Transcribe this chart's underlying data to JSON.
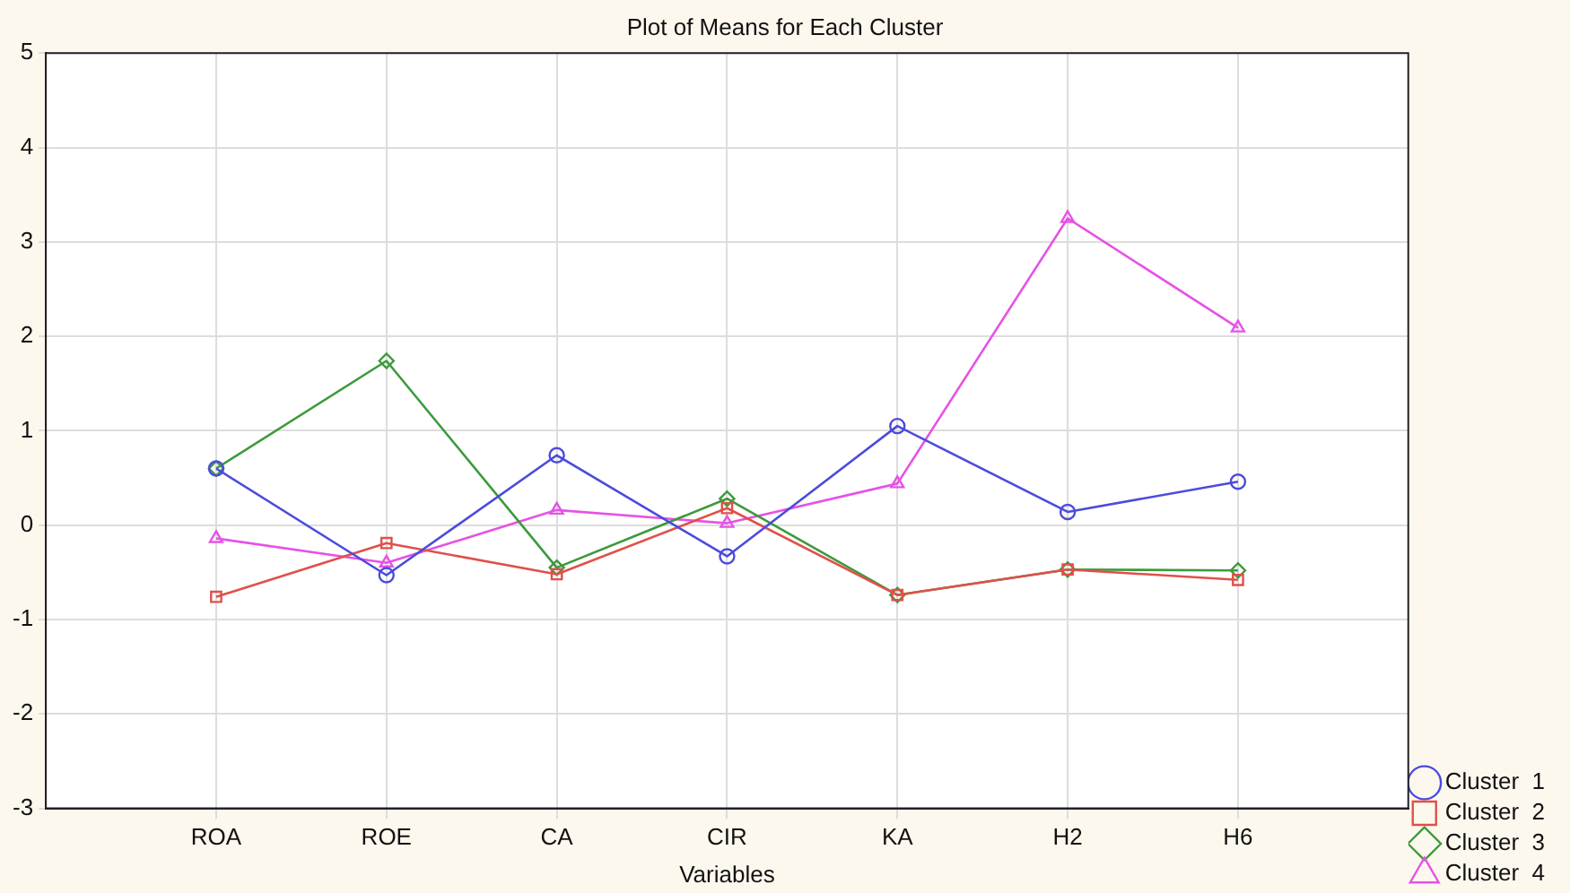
{
  "chart_data": {
    "type": "line",
    "title": "Plot of Means for Each Cluster",
    "xlabel": "Variables",
    "categories": [
      "ROA",
      "ROE",
      "CA",
      "CIR",
      "KA",
      "H2",
      "H6"
    ],
    "ylim": [
      -3,
      5
    ],
    "yticks": [
      -3,
      -2,
      -1,
      0,
      1,
      2,
      3,
      4,
      5
    ],
    "grid": true,
    "legend": "bottom right",
    "line_style": "solid",
    "series": [
      {
        "name": "Cluster  1",
        "color": "#4b4bdc",
        "marker": "circle",
        "values": [
          0.6,
          -0.53,
          0.74,
          -0.33,
          1.05,
          0.14,
          0.46
        ]
      },
      {
        "name": "Cluster  2",
        "color": "#e0504a",
        "marker": "square",
        "values": [
          -0.76,
          -0.19,
          -0.52,
          0.18,
          -0.74,
          -0.47,
          -0.58
        ]
      },
      {
        "name": "Cluster  3",
        "color": "#3c9a3c",
        "marker": "diamond",
        "values": [
          0.6,
          1.74,
          -0.45,
          0.28,
          -0.74,
          -0.47,
          -0.48
        ]
      },
      {
        "name": "Cluster  4",
        "color": "#e652e6",
        "marker": "triangle",
        "values": [
          -0.14,
          -0.4,
          0.16,
          0.02,
          0.44,
          3.25,
          2.09
        ]
      }
    ]
  }
}
